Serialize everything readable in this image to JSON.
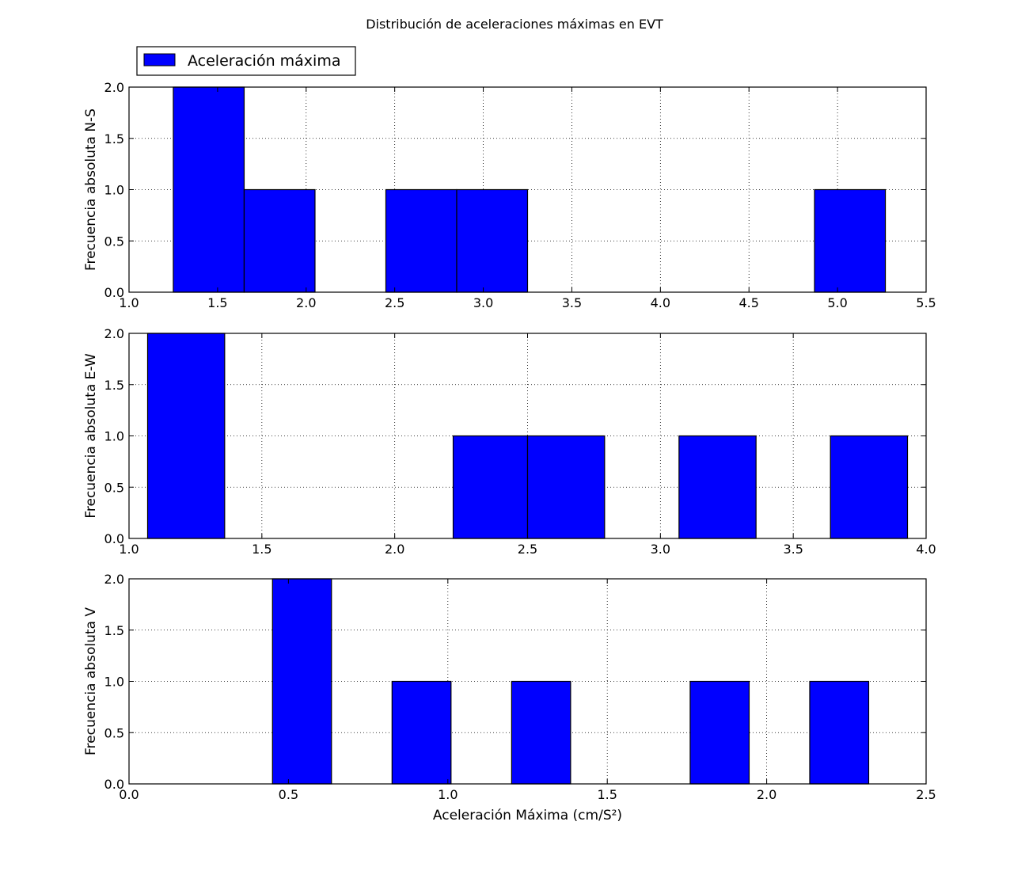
{
  "figure_title": "Distribución de aceleraciones máximas en EVT",
  "legend": {
    "label": "Aceleración máxima",
    "placement": "upper-left-outside",
    "color": "#0000ff"
  },
  "chart_data": [
    {
      "type": "bar",
      "subtype": "histogram",
      "ylabel": "Frecuencia absoluta N-S",
      "xlabel": "",
      "xlim": [
        1.0,
        5.5
      ],
      "ylim": [
        0,
        2.0
      ],
      "xticks": [
        "1.0",
        "1.5",
        "2.0",
        "2.5",
        "3.0",
        "3.5",
        "4.0",
        "4.5",
        "5.0",
        "5.5"
      ],
      "yticks": [
        "0.0",
        "0.5",
        "1.0",
        "1.5",
        "2.0"
      ],
      "grid": true,
      "color": "#0000ff",
      "bins": [
        {
          "x0": 1.25,
          "x1": 1.65,
          "count": 2
        },
        {
          "x0": 1.65,
          "x1": 2.05,
          "count": 1
        },
        {
          "x0": 2.45,
          "x1": 2.85,
          "count": 1
        },
        {
          "x0": 2.85,
          "x1": 3.25,
          "count": 1
        },
        {
          "x0": 4.87,
          "x1": 5.27,
          "count": 1
        }
      ]
    },
    {
      "type": "bar",
      "subtype": "histogram",
      "ylabel": "Frecuencia absoluta E-W",
      "xlabel": "",
      "xlim": [
        1.0,
        4.0
      ],
      "ylim": [
        0,
        2.0
      ],
      "xticks": [
        "1.0",
        "1.5",
        "2.0",
        "2.5",
        "3.0",
        "3.5",
        "4.0"
      ],
      "yticks": [
        "0.0",
        "0.5",
        "1.0",
        "1.5",
        "2.0"
      ],
      "grid": true,
      "color": "#0000ff",
      "bins": [
        {
          "x0": 1.07,
          "x1": 1.36,
          "count": 2
        },
        {
          "x0": 2.22,
          "x1": 2.5,
          "count": 1
        },
        {
          "x0": 2.5,
          "x1": 2.79,
          "count": 1
        },
        {
          "x0": 3.07,
          "x1": 3.36,
          "count": 1
        },
        {
          "x0": 3.64,
          "x1": 3.93,
          "count": 1
        }
      ]
    },
    {
      "type": "bar",
      "subtype": "histogram",
      "ylabel": "Frecuencia absoluta V",
      "xlabel": "Aceleración Máxima (cm/S²)",
      "xlim": [
        0.0,
        2.5
      ],
      "ylim": [
        0,
        2.0
      ],
      "xticks": [
        "0.0",
        "0.5",
        "1.0",
        "1.5",
        "2.0",
        "2.5"
      ],
      "yticks": [
        "0.0",
        "0.5",
        "1.0",
        "1.5",
        "2.0"
      ],
      "grid": true,
      "color": "#0000ff",
      "bins": [
        {
          "x0": 0.45,
          "x1": 0.635,
          "count": 2
        },
        {
          "x0": 0.825,
          "x1": 1.01,
          "count": 1
        },
        {
          "x0": 1.2,
          "x1": 1.385,
          "count": 1
        },
        {
          "x0": 1.76,
          "x1": 1.945,
          "count": 1
        },
        {
          "x0": 2.135,
          "x1": 2.32,
          "count": 1
        }
      ]
    }
  ]
}
